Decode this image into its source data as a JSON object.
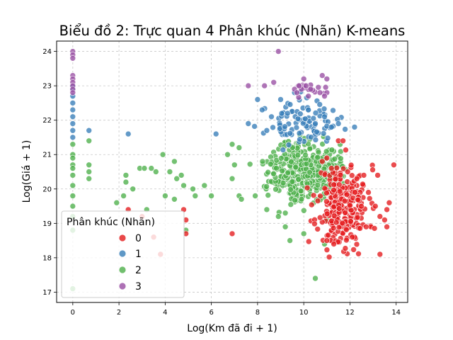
{
  "chart_data": {
    "type": "scatter",
    "title": "Biểu đồ 2: Trực quan 4 Phân khúc (Nhãn) K-means",
    "xlabel": "Log(Km đã đi + 1)",
    "ylabel": "Log(Giá + 1)",
    "xlim": [
      -0.7,
      14.5
    ],
    "ylim": [
      16.7,
      24.3
    ],
    "xticks": [
      "0",
      "2",
      "4",
      "6",
      "8",
      "10",
      "12",
      "14"
    ],
    "yticks": [
      "17",
      "18",
      "19",
      "20",
      "21",
      "22",
      "23",
      "24"
    ],
    "grid": true,
    "legend": {
      "title": "Phân khúc (Nhãn)",
      "placement": "lower-left",
      "entries": [
        "0",
        "1",
        "2",
        "3"
      ]
    },
    "colors": {
      "0": "#e41a1c",
      "1": "#377eb8",
      "2": "#4daf4a",
      "3": "#984ea3"
    },
    "series": [
      {
        "name": "0",
        "color": "#e41a1c",
        "points": [
          [
            2.4,
            19.4
          ],
          [
            3.0,
            19.2
          ],
          [
            3.5,
            18.6
          ],
          [
            3.8,
            18.1
          ],
          [
            4.8,
            19.4
          ],
          [
            4.9,
            19.1
          ],
          [
            4.9,
            18.7
          ],
          [
            6.9,
            18.7
          ],
          [
            10.8,
            20.8
          ],
          [
            11.0,
            20.9
          ],
          [
            11.2,
            20.6
          ],
          [
            11.5,
            21.4
          ],
          [
            11.7,
            21.4
          ],
          [
            11.9,
            20.5
          ],
          [
            12.3,
            20.3
          ],
          [
            12.6,
            20.4
          ],
          [
            12.8,
            19.9
          ],
          [
            13.1,
            19.5
          ],
          [
            13.3,
            19.2
          ],
          [
            13.5,
            19.1
          ],
          [
            13.6,
            18.9
          ],
          [
            13.7,
            19.6
          ],
          [
            13.9,
            20.7
          ],
          [
            13.3,
            18.1
          ],
          [
            12.1,
            18.6
          ],
          [
            11.3,
            18.4
          ],
          [
            11.0,
            18.5
          ],
          [
            12.7,
            18.9
          ],
          [
            13.2,
            20.4
          ],
          [
            13.6,
            19.4
          ]
        ],
        "cluster": {
          "cx": 11.7,
          "cy": 19.5,
          "sx": 0.55,
          "sy": 0.6,
          "n": 260,
          "seed": 11
        }
      },
      {
        "name": "1",
        "color": "#377eb8",
        "points": [
          [
            0.0,
            22.7
          ],
          [
            0.0,
            22.5
          ],
          [
            0.0,
            22.3
          ],
          [
            0.0,
            22.1
          ],
          [
            0.0,
            21.9
          ],
          [
            0.0,
            21.7
          ],
          [
            0.0,
            21.5
          ],
          [
            0.0,
            22.9
          ],
          [
            0.0,
            23.0
          ],
          [
            0.7,
            21.7
          ],
          [
            2.4,
            21.6
          ],
          [
            6.2,
            21.6
          ],
          [
            7.6,
            21.9
          ],
          [
            8.0,
            22.6
          ],
          [
            8.2,
            22.3
          ],
          [
            9.0,
            22.6
          ],
          [
            9.6,
            22.8
          ],
          [
            10.9,
            22.1
          ],
          [
            11.2,
            21.8
          ],
          [
            12.2,
            21.8
          ],
          [
            11.5,
            21.9
          ],
          [
            8.4,
            21.7
          ],
          [
            8.6,
            22.1
          ],
          [
            10.2,
            22.3
          ],
          [
            10.5,
            21.9
          ],
          [
            9.3,
            22.2
          ]
        ],
        "cluster": {
          "cx": 9.9,
          "cy": 21.9,
          "sx": 0.75,
          "sy": 0.3,
          "n": 95,
          "seed": 23
        }
      },
      {
        "name": "2",
        "color": "#4daf4a",
        "points": [
          [
            0.0,
            21.3
          ],
          [
            0.0,
            21.0
          ],
          [
            0.0,
            20.7
          ],
          [
            0.0,
            20.4
          ],
          [
            0.0,
            20.1
          ],
          [
            0.0,
            19.8
          ],
          [
            0.0,
            19.5
          ],
          [
            0.0,
            19.2
          ],
          [
            0.0,
            18.8
          ],
          [
            0.0,
            17.1
          ],
          [
            0.0,
            20.9
          ],
          [
            0.0,
            20.6
          ],
          [
            0.7,
            21.4
          ],
          [
            0.7,
            20.7
          ],
          [
            0.7,
            20.5
          ],
          [
            0.7,
            20.3
          ],
          [
            2.2,
            19.8
          ],
          [
            2.3,
            20.4
          ],
          [
            2.3,
            20.2
          ],
          [
            2.6,
            20.0
          ],
          [
            2.9,
            20.6
          ],
          [
            3.1,
            20.6
          ],
          [
            3.4,
            20.6
          ],
          [
            3.6,
            20.5
          ],
          [
            3.9,
            21.0
          ],
          [
            4.2,
            20.5
          ],
          [
            4.4,
            20.8
          ],
          [
            4.5,
            20.3
          ],
          [
            4.7,
            20.4
          ],
          [
            4.8,
            20.1
          ],
          [
            4.0,
            19.8
          ],
          [
            4.4,
            19.7
          ],
          [
            5.2,
            20.0
          ],
          [
            5.7,
            20.1
          ],
          [
            6.0,
            19.8
          ],
          [
            5.3,
            19.8
          ],
          [
            4.9,
            18.8
          ],
          [
            6.7,
            21.0
          ],
          [
            6.9,
            21.3
          ],
          [
            7.0,
            20.7
          ],
          [
            7.2,
            21.2
          ],
          [
            6.9,
            20.3
          ],
          [
            7.2,
            19.8
          ],
          [
            7.3,
            19.7
          ],
          [
            7.9,
            19.8
          ],
          [
            8.4,
            19.4
          ],
          [
            8.9,
            19.2
          ],
          [
            9.2,
            19.3
          ],
          [
            9.2,
            18.9
          ],
          [
            9.4,
            18.5
          ],
          [
            10.0,
            18.7
          ],
          [
            10.9,
            18.4
          ],
          [
            10.5,
            17.4
          ],
          [
            11.0,
            19.1
          ],
          [
            3.2,
            19.4
          ],
          [
            1.9,
            19.6
          ]
        ],
        "cluster": {
          "cx": 10.0,
          "cy": 20.55,
          "sx": 0.75,
          "sy": 0.42,
          "n": 400,
          "seed": 37
        }
      },
      {
        "name": "3",
        "color": "#984ea3",
        "points": [
          [
            0.0,
            24.0
          ],
          [
            0.0,
            23.9
          ],
          [
            0.0,
            23.8
          ],
          [
            0.0,
            23.3
          ],
          [
            0.0,
            23.2
          ],
          [
            0.0,
            23.1
          ],
          [
            0.0,
            23.0
          ],
          [
            0.0,
            22.9
          ],
          [
            0.0,
            22.8
          ],
          [
            7.6,
            23.0
          ],
          [
            8.3,
            23.0
          ],
          [
            8.9,
            24.0
          ],
          [
            8.7,
            23.1
          ],
          [
            9.6,
            22.9
          ],
          [
            9.9,
            22.9
          ],
          [
            10.0,
            23.2
          ],
          [
            10.1,
            23.0
          ],
          [
            10.3,
            22.9
          ],
          [
            10.7,
            22.8
          ],
          [
            10.8,
            23.3
          ],
          [
            11.0,
            23.2
          ],
          [
            11.0,
            22.8
          ],
          [
            10.2,
            22.7
          ],
          [
            9.8,
            23.0
          ],
          [
            10.9,
            22.7
          ],
          [
            9.7,
            22.8
          ]
        ],
        "cluster": {
          "cx": 10.3,
          "cy": 22.95,
          "sx": 0.4,
          "sy": 0.12,
          "n": 12,
          "seed": 53
        }
      }
    ]
  }
}
